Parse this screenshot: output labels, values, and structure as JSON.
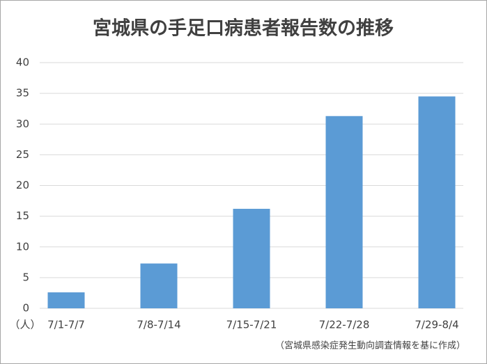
{
  "chart_data": {
    "type": "bar",
    "title": "宮城県の手足口病患者報告数の推移",
    "y_label": "（人）",
    "note": "（宮城県感染症発生動向調査情報を基に作成）",
    "categories": [
      "7/1-7/7",
      "7/8-7/14",
      "7/15-7/21",
      "7/22-7/28",
      "7/29-8/4"
    ],
    "values": [
      2.6,
      7.3,
      16.2,
      31.3,
      34.5
    ],
    "color": "#5b9bd5",
    "ylim": [
      0,
      40
    ],
    "yticks": [
      0,
      5,
      10,
      15,
      20,
      25,
      30,
      35,
      40
    ],
    "grid": true
  }
}
